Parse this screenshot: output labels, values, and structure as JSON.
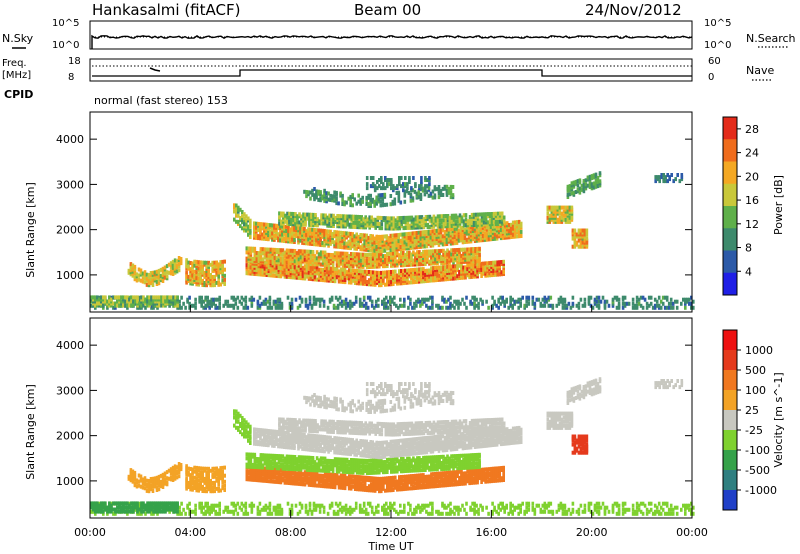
{
  "header": {
    "station": "Hankasalmi (fitACF)",
    "beam": "Beam 00",
    "date": "24/Nov/2012"
  },
  "noise_panel": {
    "left_label": "N.Sky",
    "right_label": "N.Search",
    "left_ticks": [
      "10^5",
      "10^0"
    ],
    "right_ticks": [
      "10^5",
      "10^0"
    ]
  },
  "freq_panel": {
    "left_label_1": "Freq.",
    "left_label_2": "[MHz]",
    "right_label": "Nave",
    "left_ticks": [
      "18",
      "8"
    ],
    "right_ticks": [
      "60",
      "0"
    ]
  },
  "cpid": {
    "label": "CPID",
    "text": "normal (fast stereo) 153"
  },
  "chart_data": [
    {
      "type": "heatmap",
      "name": "Power",
      "ylabel": "Slant Range [km]",
      "xlabel": "Time UT",
      "xlim": [
        0,
        24
      ],
      "ylim": [
        180,
        4600
      ],
      "x_ticks": [
        "00:00",
        "04:00",
        "08:00",
        "12:00",
        "16:00",
        "20:00",
        "00:00"
      ],
      "y_ticks": [
        1000,
        2000,
        3000,
        4000
      ],
      "colorbar": {
        "label": "Power [dB]",
        "ticks": [
          4,
          8,
          12,
          16,
          20,
          24,
          28
        ],
        "range": [
          0,
          30
        ],
        "colors": [
          "#1f1fe6",
          "#2c5aa8",
          "#3d8a6c",
          "#5fb04a",
          "#c9c83a",
          "#f4a823",
          "#ef6c1c",
          "#e42b1a"
        ]
      }
    },
    {
      "type": "heatmap",
      "name": "Velocity",
      "ylabel": "Slant Range [km]",
      "xlabel": "Time UT",
      "xlim": [
        0,
        24
      ],
      "ylim": [
        180,
        4600
      ],
      "x_ticks": [
        "00:00",
        "04:00",
        "08:00",
        "12:00",
        "16:00",
        "20:00",
        "00:00"
      ],
      "y_ticks": [
        1000,
        2000,
        3000,
        4000
      ],
      "colorbar": {
        "label": "Velocity [m s^-1]",
        "ticks": [
          1000,
          500,
          100,
          25,
          -25,
          -100,
          -500,
          -1000
        ],
        "range": [
          -1000,
          1000
        ],
        "colors": [
          "#2040c8",
          "#2f7f80",
          "#35a24a",
          "#7fd12f",
          "#c8c8c0",
          "#f3a326",
          "#f07820",
          "#e53a1c",
          "#ee1010"
        ]
      }
    }
  ]
}
